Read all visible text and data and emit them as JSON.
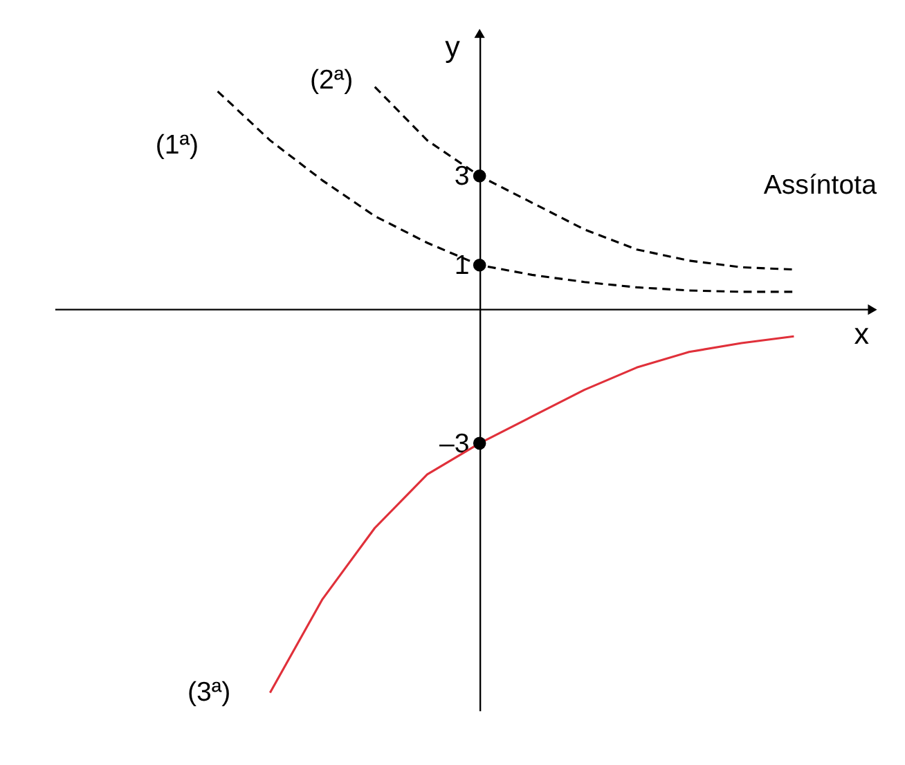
{
  "chart_data": {
    "type": "line",
    "xlabel": "x",
    "ylabel": "y",
    "ylim": [
      -9,
      6.2
    ],
    "yticks": [
      3,
      1,
      {
        "value": -3,
        "label": "–3"
      }
    ],
    "tick_labels": "y",
    "categories": [
      null,
      null,
      null,
      null,
      null,
      null,
      null,
      null,
      null,
      null,
      null,
      null,
      null,
      null,
      null
    ],
    "series": [
      {
        "name": "(1ª)",
        "color": "#000000",
        "line_style": "dashed",
        "values": [
          null,
          null,
          4.9,
          3.8,
          2.9,
          2.1,
          1.5,
          1,
          0.78,
          0.62,
          0.5,
          0.43,
          0.4,
          0.4,
          null
        ]
      },
      {
        "name": "(2ª)",
        "color": "#000000",
        "line_style": "dashed",
        "values": [
          null,
          null,
          null,
          null,
          null,
          5.0,
          3.8,
          3,
          2.4,
          1.8,
          1.35,
          1.1,
          0.95,
          0.9,
          null
        ]
      },
      {
        "name": "(3ª)",
        "color": "#e0303a",
        "line_style": "solid",
        "values": [
          null,
          null,
          null,
          -8.6,
          -6.5,
          -4.9,
          -3.7,
          -3,
          -2.4,
          -1.8,
          -1.3,
          -0.95,
          -0.75,
          -0.6,
          null
        ]
      },
      {
        "type": "scatter",
        "color": "#000000",
        "marker": "circle",
        "values": [
          null,
          null,
          null,
          null,
          null,
          null,
          null,
          3,
          null,
          null,
          null,
          null,
          null,
          null,
          null
        ]
      },
      {
        "type": "scatter",
        "color": "#000000",
        "marker": "circle",
        "values": [
          null,
          null,
          null,
          null,
          null,
          null,
          null,
          1,
          null,
          null,
          null,
          null,
          null,
          null,
          null
        ]
      },
      {
        "type": "scatter",
        "color": "#000000",
        "marker": "circle",
        "values": [
          null,
          null,
          null,
          null,
          null,
          null,
          null,
          -3,
          null,
          null,
          null,
          null,
          null,
          null,
          null
        ]
      }
    ],
    "annotations": [
      "Assíntota"
    ]
  }
}
